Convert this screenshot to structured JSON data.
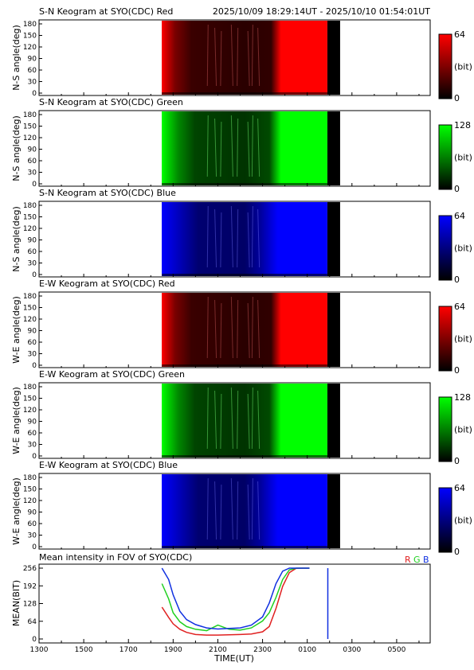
{
  "header": {
    "time_range": "2025/10/09 18:29:14UT - 2025/10/10 01:54:01UT"
  },
  "colors": {
    "red": "#ff0000",
    "green": "#00ff00",
    "blue": "#0000ff",
    "line_red": "#e02020",
    "line_green": "#20d020",
    "line_blue": "#1030e0"
  },
  "keograms": [
    {
      "title": "S-N Keogram at SYO(CDC) Red",
      "ylabel": "N-S angle(deg)",
      "channel": "red",
      "cbar_max": "64",
      "cbar_unit": "(bit)",
      "cbar_min": "0"
    },
    {
      "title": "S-N Keogram at SYO(CDC) Green",
      "ylabel": "N-S angle(deg)",
      "channel": "green",
      "cbar_max": "128",
      "cbar_unit": "(bit)",
      "cbar_min": "0"
    },
    {
      "title": "S-N Keogram at SYO(CDC) Blue",
      "ylabel": "N-S angle(deg)",
      "channel": "blue",
      "cbar_max": "64",
      "cbar_unit": "(bit)",
      "cbar_min": "0"
    },
    {
      "title": "E-W Keogram at SYO(CDC) Red",
      "ylabel": "W-E angle(deg)",
      "channel": "red",
      "cbar_max": "64",
      "cbar_unit": "(bit)",
      "cbar_min": "0"
    },
    {
      "title": "E-W Keogram at SYO(CDC) Green",
      "ylabel": "W-E angle(deg)",
      "channel": "green",
      "cbar_max": "128",
      "cbar_unit": "(bit)",
      "cbar_min": "0"
    },
    {
      "title": "E-W Keogram at SYO(CDC) Blue",
      "ylabel": "W-E angle(deg)",
      "channel": "blue",
      "cbar_max": "64",
      "cbar_unit": "(bit)",
      "cbar_min": "0"
    }
  ],
  "keogram_yticks": [
    "0",
    "30",
    "60",
    "90",
    "120",
    "150",
    "180"
  ],
  "chart_data": {
    "type": "line",
    "title": "Mean intensity in FOV of SYO(CDC)",
    "xlabel": "TIME(UT)",
    "ylabel": "MEAN(BIT)",
    "legend": [
      "R",
      "G",
      "B"
    ],
    "legend_placement": "top-right",
    "x_tick_labels": [
      "1300",
      "1500",
      "1700",
      "1900",
      "2100",
      "2300",
      "0100",
      "0300",
      "0500"
    ],
    "y_tick_labels": [
      "0",
      "64",
      "128",
      "192",
      "256"
    ],
    "xlim_hours": [
      13,
      30.5
    ],
    "ylim": [
      0,
      256
    ],
    "observation_hours": [
      18.49,
      25.9
    ],
    "x": [
      18.5,
      18.8,
      19.0,
      19.3,
      19.6,
      20.0,
      20.5,
      21.0,
      21.5,
      22.0,
      22.5,
      23.0,
      23.3,
      23.6,
      23.9,
      24.2,
      24.5,
      24.8,
      25.1
    ],
    "series": [
      {
        "name": "R",
        "color": "line_red",
        "values": [
          115,
          78,
          55,
          35,
          24,
          16,
          14,
          14,
          15,
          16,
          18,
          26,
          45,
          110,
          190,
          240,
          255,
          256,
          256
        ]
      },
      {
        "name": "G",
        "color": "line_green",
        "values": [
          200,
          145,
          95,
          62,
          45,
          35,
          30,
          50,
          35,
          32,
          40,
          65,
          95,
          150,
          215,
          250,
          256,
          256,
          256
        ]
      },
      {
        "name": "B",
        "color": "line_blue",
        "values": [
          256,
          215,
          160,
          100,
          70,
          52,
          40,
          36,
          38,
          40,
          50,
          80,
          130,
          200,
          245,
          256,
          256,
          256,
          256
        ]
      }
    ],
    "blue_spike": {
      "x": 25.92,
      "values": [
        256,
        0
      ]
    }
  }
}
